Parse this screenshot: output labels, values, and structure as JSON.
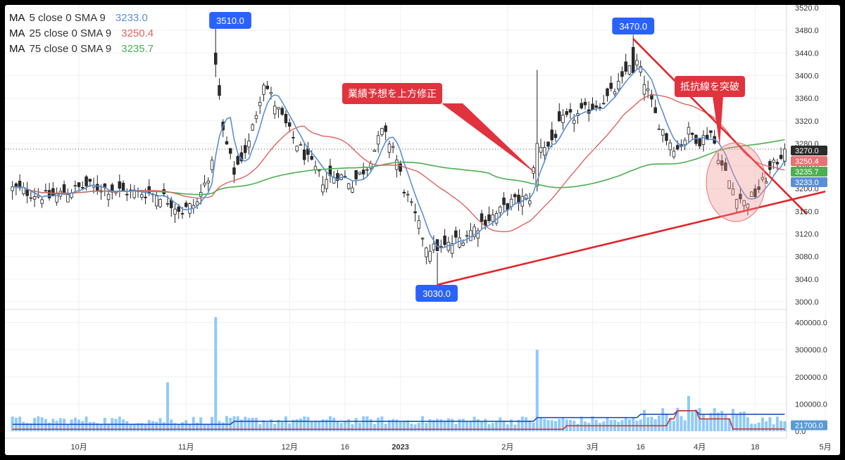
{
  "legend": [
    {
      "ma": "MA",
      "params": "5 close 0 SMA 9",
      "value": "3233.0",
      "color": "#5b8fd6"
    },
    {
      "ma": "MA",
      "params": "25 close 0 SMA 9",
      "value": "3250.4",
      "color": "#e0625f"
    },
    {
      "ma": "MA",
      "params": "75 close 0 SMA 9",
      "value": "3235.7",
      "color": "#4caf50"
    }
  ],
  "annotations": {
    "high1": "3510.0",
    "high2": "3470.0",
    "low": "3030.0",
    "earnings": "業績予想を上方修正",
    "breakout": "抵抗線を突破"
  },
  "price_tags": [
    {
      "label": "3270.0",
      "value": 3270,
      "color": "#2b2b2b"
    },
    {
      "label": "3250.4",
      "value": 3250.4,
      "color": "#e57373"
    },
    {
      "label": "3235.7",
      "value": 3235.7,
      "color": "#4caf50"
    },
    {
      "label": "3233.0",
      "value": 3233,
      "color": "#5b8fd6"
    }
  ],
  "volume_tag": {
    "label": "21700.0",
    "value": 21700
  },
  "chart_data": {
    "type": "candlestick",
    "price_axis": {
      "ylim": [
        2990,
        3525
      ],
      "ticks": [
        3000,
        3040,
        3080,
        3120,
        3160,
        3200,
        3240,
        3280,
        3320,
        3360,
        3400,
        3440,
        3480,
        3520
      ],
      "tick_labels": [
        "3000.0",
        "3040.0",
        "3080.0",
        "3120.0",
        "3160.0",
        "3200.0",
        "3240.0",
        "3280.0",
        "3320.0",
        "3360.0",
        "3400.0",
        "3440.0",
        "3480.0",
        "3520.0"
      ]
    },
    "volume_axis": {
      "ylim": [
        0,
        430000
      ],
      "ticks": [
        0,
        100000,
        200000,
        300000,
        400000
      ],
      "tick_labels": [
        "0.0",
        "100000.0",
        "200000.0",
        "300000.0",
        "400000.0"
      ]
    },
    "x_axis": {
      "labels": [
        "10月",
        "11月",
        "12月",
        "16",
        "2023",
        "2月",
        "3月",
        "16",
        "4月",
        "18",
        "5月"
      ],
      "label_index": [
        18,
        47,
        75,
        90,
        105,
        134,
        157,
        170,
        186,
        201,
        220
      ]
    },
    "n_bars": 210,
    "anchors": {
      "high1_index": 55,
      "high1_value": 3510,
      "low_index": 115,
      "low_value": 3030,
      "high2_index": 168,
      "high2_value": 3470,
      "earnings_index": 142,
      "last_close": 3270
    },
    "close_path": [
      [
        0,
        3200
      ],
      [
        10,
        3185
      ],
      [
        20,
        3205
      ],
      [
        30,
        3195
      ],
      [
        40,
        3190
      ],
      [
        46,
        3160
      ],
      [
        50,
        3175
      ],
      [
        54,
        3240
      ],
      [
        55,
        3420
      ],
      [
        57,
        3300
      ],
      [
        60,
        3230
      ],
      [
        64,
        3280
      ],
      [
        68,
        3390
      ],
      [
        71,
        3350
      ],
      [
        75,
        3300
      ],
      [
        80,
        3250
      ],
      [
        84,
        3215
      ],
      [
        88,
        3225
      ],
      [
        92,
        3210
      ],
      [
        96,
        3240
      ],
      [
        100,
        3300
      ],
      [
        103,
        3275
      ],
      [
        106,
        3200
      ],
      [
        109,
        3150
      ],
      [
        112,
        3100
      ],
      [
        115,
        3090
      ],
      [
        118,
        3100
      ],
      [
        122,
        3115
      ],
      [
        127,
        3140
      ],
      [
        131,
        3155
      ],
      [
        135,
        3175
      ],
      [
        140,
        3185
      ],
      [
        142,
        3280
      ],
      [
        145,
        3275
      ],
      [
        149,
        3320
      ],
      [
        153,
        3330
      ],
      [
        157,
        3345
      ],
      [
        161,
        3360
      ],
      [
        165,
        3390
      ],
      [
        168,
        3440
      ],
      [
        171,
        3390
      ],
      [
        174,
        3330
      ],
      [
        177,
        3290
      ],
      [
        180,
        3270
      ],
      [
        183,
        3300
      ],
      [
        186,
        3285
      ],
      [
        189,
        3300
      ],
      [
        192,
        3240
      ],
      [
        195,
        3200
      ],
      [
        198,
        3175
      ],
      [
        201,
        3190
      ],
      [
        204,
        3220
      ],
      [
        207,
        3250
      ],
      [
        209,
        3270
      ]
    ],
    "volume_spikes": [
      [
        42,
        180000
      ],
      [
        55,
        420000
      ],
      [
        142,
        300000
      ],
      [
        183,
        130000
      ]
    ],
    "volume_base": 40000,
    "overlay_lines": [
      {
        "name": "blue",
        "color": "#1f4fbf"
      },
      {
        "name": "red",
        "color": "#d32f2f"
      }
    ],
    "trendlines": [
      {
        "from": [
          115,
          3030
        ],
        "to": [
          220,
          3195
        ]
      },
      {
        "from": [
          168,
          3465
        ],
        "to": [
          215,
          3155
        ]
      }
    ],
    "grid": true
  }
}
